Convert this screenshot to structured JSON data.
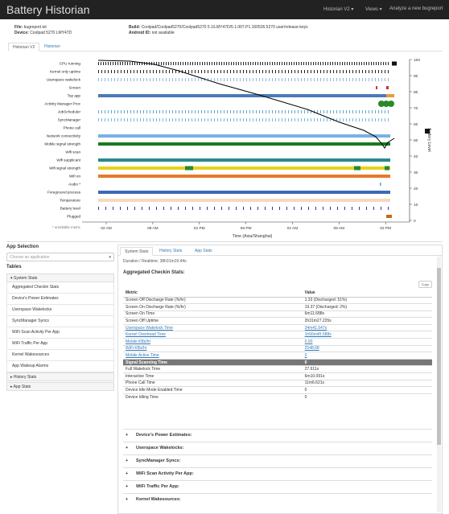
{
  "app": {
    "title": "Battery Historian",
    "nav": [
      "Historian V2 ▾",
      "Views ▾",
      "Analyze a new bugreport"
    ]
  },
  "file": {
    "file_label": "File:",
    "file": "bugreport.txt",
    "device_label": "Device:",
    "device": "Coolpad 5270 LMY47D",
    "build_label": "Build:",
    "build": "Coolpad/Coolpad5270/Coolpad5270 5.1/LMY47D/5.1.007.P1.160526.5270 user/release-keys",
    "android_label": "Android ID:",
    "android": "not available"
  },
  "top_tabs": [
    "Historian V2",
    "Historian"
  ],
  "chart": {
    "rows": [
      "CPU running",
      "Kernel only uptime",
      "Userspace wakelock",
      "Screen",
      "Top app",
      "Activity Manager Proc",
      "JobScheduler",
      "SyncManager",
      "Phone call",
      "Network connectivity",
      "Mobile signal strength",
      "Wifi scan",
      "Wifi supplicant",
      "Wifi signal strength",
      "Wifi on",
      "Audio *",
      "Foreground process",
      "Temperature",
      "Battery level",
      "Plugged"
    ],
    "unreliable": "* unreliable metric",
    "x_ticks": [
      "02 AM",
      "08 AM",
      "02 PM",
      "08 PM",
      "02 AM",
      "08 AM",
      "02 PM"
    ],
    "y_ticks": [
      "100",
      "90",
      "80",
      "70",
      "60",
      "50",
      "40",
      "30",
      "20",
      "10",
      "0"
    ],
    "xlabel": "Time (Asia/Shanghai)",
    "ylabel": "Battery Level"
  },
  "chart_data": {
    "type": "line",
    "title": "",
    "xlabel": "Time (Asia/Shanghai)",
    "ylabel": "Battery Level",
    "ylim": [
      0,
      100
    ],
    "x": [
      "02 AM",
      "08 AM",
      "02 PM",
      "08 PM",
      "02 AM",
      "08 AM",
      "02 PM"
    ],
    "series": [
      {
        "values": [
          100,
          99,
          95,
          87,
          78,
          70,
          53
        ]
      }
    ],
    "grid": false
  },
  "left": {
    "app_selection": "App Selection",
    "placeholder": "Choose an application",
    "tables": "Tables",
    "system_stats": "System Stats",
    "items": [
      "Aggregated Checkin Stats",
      "Device's Power Estimates",
      "Userspace Wakelocks",
      "SyncManager Syncs",
      "WiFi Scan Activity Per App",
      "WiFi Traffic Per App",
      "Kernel Wakesources",
      "App Wakeup Alarms"
    ],
    "history_stats": "History Stats",
    "app_stats": "App Stats"
  },
  "right": {
    "tabs": [
      "System Stats",
      "History Stats",
      "App Stats"
    ],
    "duration": "Duration / Realtime: 38h31m19.44s",
    "agg_title": "Aggregated Checkin Stats:",
    "copy": "Copy",
    "metric_header": "Metric",
    "value_header": "Value",
    "rows": [
      [
        "Screen Off Discharge Rate (%/hr)",
        "1.33 (Discharged: 51%)"
      ],
      [
        "Screen On Discharge Rate (%/hr)",
        "19.37 (Discharged: 2%)"
      ],
      [
        "Screen On Time",
        "6m11.688s"
      ],
      [
        "Screen Off Uptime",
        "2h31m27.235s"
      ],
      [
        "Userspace Wakelock Time",
        "34m41.547s"
      ],
      [
        "Kernel Overhead Time",
        "1h56m45.588s"
      ],
      [
        "Mobile KBs/hr",
        "0.00"
      ],
      [
        "WiFi KBs/hr",
        "2548.68"
      ],
      [
        "Mobile Active Time",
        "0"
      ],
      [
        "Signal Scanning Time",
        "0"
      ],
      [
        "Full Wakelock Time",
        "27.611s"
      ],
      [
        "Interactive Time",
        "6m10.091s"
      ],
      [
        "Phone Call Time",
        "11m6.621s"
      ],
      [
        "Device Idle Mode Enabled Time",
        "0"
      ],
      [
        "Device Idling Time",
        "0"
      ]
    ],
    "sections": [
      "Device's Power Estimates:",
      "Userspace Wakelocks:",
      "SyncManager Syncs:",
      "WiFi Scan Activity Per App:",
      "WiFi Traffic Per App:",
      "Kernel Wakesources:"
    ]
  }
}
